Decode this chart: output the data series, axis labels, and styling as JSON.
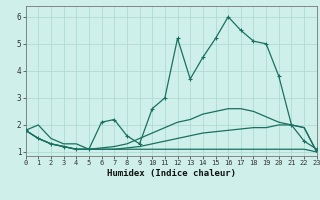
{
  "xlabel": "Humidex (Indice chaleur)",
  "bg_color": "#cff0ea",
  "line_color": "#1a7060",
  "grid_color": "#a8d8d0",
  "xlim": [
    0,
    23
  ],
  "ylim": [
    0.85,
    6.4
  ],
  "xticks": [
    0,
    1,
    2,
    3,
    4,
    5,
    6,
    7,
    8,
    9,
    10,
    11,
    12,
    13,
    14,
    15,
    16,
    17,
    18,
    19,
    20,
    21,
    22,
    23
  ],
  "yticks": [
    1,
    2,
    3,
    4,
    5,
    6
  ],
  "lines": [
    {
      "y": [
        1.8,
        2.0,
        1.5,
        1.3,
        1.3,
        1.1,
        1.1,
        1.1,
        1.1,
        1.1,
        1.1,
        1.1,
        1.1,
        1.1,
        1.1,
        1.1,
        1.1,
        1.1,
        1.1,
        1.1,
        1.1,
        1.1,
        1.1,
        1.0
      ],
      "marker": false,
      "lw": 0.9
    },
    {
      "y": [
        1.8,
        1.5,
        1.3,
        1.2,
        1.1,
        1.1,
        1.1,
        1.1,
        1.15,
        1.2,
        1.3,
        1.4,
        1.5,
        1.6,
        1.7,
        1.75,
        1.8,
        1.85,
        1.9,
        1.9,
        2.0,
        2.0,
        1.9,
        1.0
      ],
      "marker": false,
      "lw": 0.9
    },
    {
      "y": [
        1.8,
        1.5,
        1.3,
        1.2,
        1.1,
        1.1,
        1.15,
        1.2,
        1.3,
        1.5,
        1.7,
        1.9,
        2.1,
        2.2,
        2.4,
        2.5,
        2.6,
        2.6,
        2.5,
        2.3,
        2.1,
        2.0,
        1.9,
        1.0
      ],
      "marker": false,
      "lw": 0.9
    },
    {
      "y": [
        1.8,
        1.5,
        1.3,
        1.2,
        1.1,
        1.1,
        2.1,
        2.2,
        1.6,
        1.3,
        2.6,
        3.0,
        5.2,
        3.7,
        4.5,
        5.2,
        6.0,
        5.5,
        5.1,
        5.0,
        3.8,
        2.0,
        1.4,
        1.1
      ],
      "marker": true,
      "lw": 0.9
    }
  ]
}
